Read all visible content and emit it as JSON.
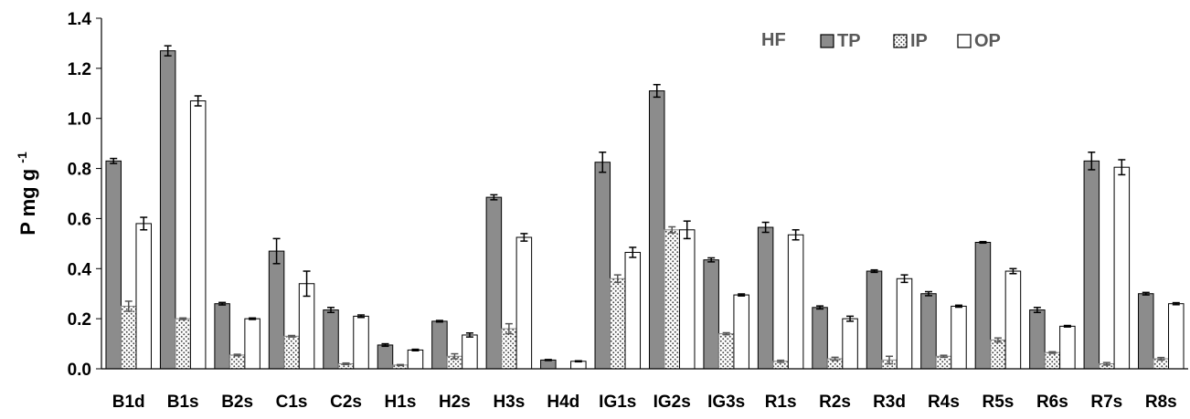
{
  "chart_data": {
    "type": "bar",
    "title": "",
    "panel_label": "HF",
    "ylabel": "P mg g",
    "ylabel_sup": "-1",
    "xlabel": "",
    "ylim": [
      0,
      1.4
    ],
    "yticks": [
      "0.0",
      "0.2",
      "0.4",
      "0.6",
      "0.8",
      "1.0",
      "1.2",
      "1.4"
    ],
    "grid": false,
    "legend_position": "top-right",
    "categories": [
      "B1d",
      "B1s",
      "B2s",
      "C1s",
      "C2s",
      "H1s",
      "H2s",
      "H3s",
      "H4d",
      "IG1s",
      "IG2s",
      "IG3s",
      "R1s",
      "R2s",
      "R3d",
      "R4s",
      "R5s",
      "R6s",
      "R7s",
      "R8s"
    ],
    "series": [
      {
        "name": "TP",
        "fill": "#8c8c8c",
        "pattern": "solid",
        "values": [
          0.83,
          1.27,
          0.26,
          0.47,
          0.235,
          0.095,
          0.19,
          0.685,
          0.035,
          0.825,
          1.11,
          0.435,
          0.565,
          0.245,
          0.39,
          0.3,
          0.505,
          0.235,
          0.83,
          0.3
        ],
        "errors": [
          0.01,
          0.02,
          0.005,
          0.05,
          0.01,
          0.005,
          0.003,
          0.01,
          0.002,
          0.04,
          0.025,
          0.008,
          0.02,
          0.006,
          0.005,
          0.008,
          0.003,
          0.01,
          0.035,
          0.005
        ]
      },
      {
        "name": "IP",
        "fill": "#ffffff",
        "pattern": "dots",
        "values": [
          0.25,
          0.2,
          0.055,
          0.13,
          0.02,
          0.015,
          0.05,
          0.16,
          0.0,
          0.36,
          0.555,
          0.14,
          0.03,
          0.04,
          0.035,
          0.05,
          0.115,
          0.065,
          0.02,
          0.04
        ],
        "errors": [
          0.02,
          0.003,
          0.003,
          0.003,
          0.003,
          0.002,
          0.01,
          0.02,
          0.0,
          0.015,
          0.012,
          0.004,
          0.004,
          0.006,
          0.015,
          0.004,
          0.008,
          0.003,
          0.005,
          0.005
        ]
      },
      {
        "name": "OP",
        "fill": "#ffffff",
        "pattern": "solid",
        "values": [
          0.58,
          1.07,
          0.2,
          0.34,
          0.21,
          0.075,
          0.135,
          0.525,
          0.03,
          0.465,
          0.555,
          0.295,
          0.535,
          0.2,
          0.36,
          0.25,
          0.39,
          0.17,
          0.805,
          0.26
        ],
        "errors": [
          0.025,
          0.02,
          0.003,
          0.05,
          0.005,
          0.003,
          0.008,
          0.015,
          0.002,
          0.02,
          0.035,
          0.004,
          0.02,
          0.01,
          0.015,
          0.004,
          0.01,
          0.003,
          0.03,
          0.004
        ]
      }
    ]
  }
}
